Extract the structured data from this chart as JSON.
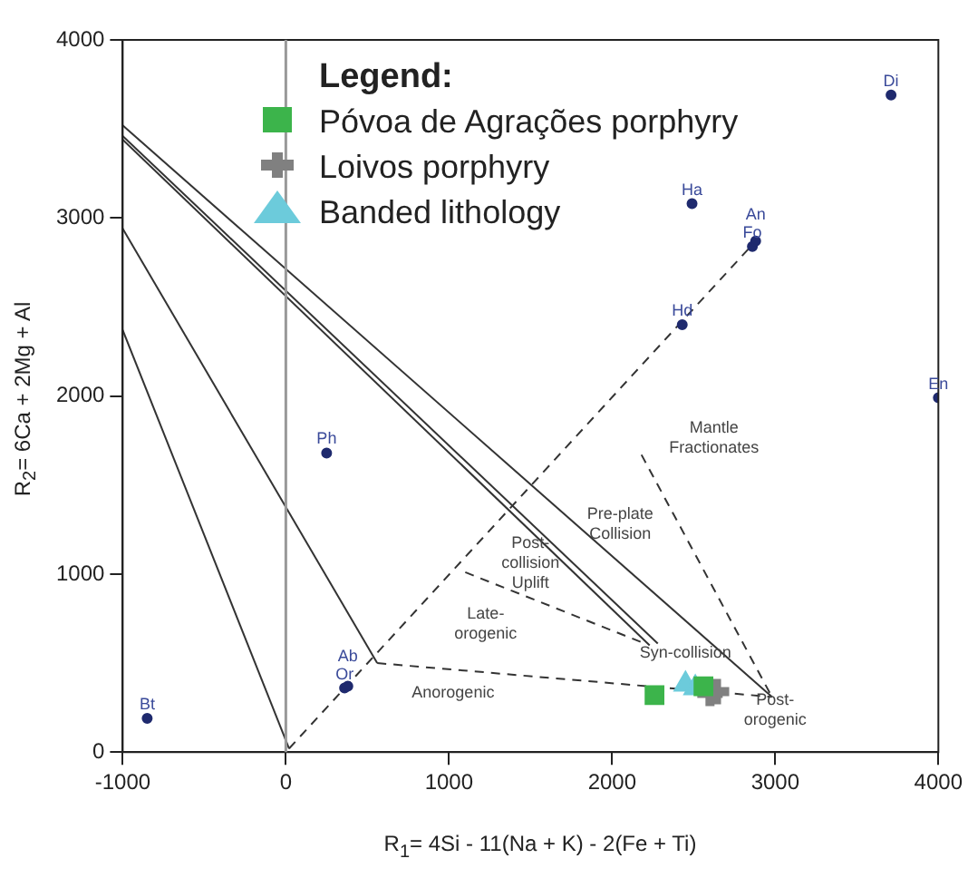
{
  "chart_data": {
    "type": "scatter",
    "xlabel": "R$_{1}$= 4Si - 11(Na + K) - 2(Fe + Ti)",
    "ylabel": "R$_{2}$= 6Ca + 2Mg + Al",
    "legend_title": "Legend:",
    "legend": "top",
    "grid": false,
    "xlim": [
      -1000,
      4000
    ],
    "xticks": [
      -1000,
      0,
      1000,
      2000,
      3000,
      4000
    ],
    "ylim": [
      0,
      4000
    ],
    "yticks": [
      0,
      1000,
      2000,
      3000,
      4000
    ],
    "ref_lines": [
      {
        "axis": "x",
        "value": 0,
        "color": "#999999"
      }
    ],
    "series": [
      {
        "name": "Póvoa de Agrações porphyry",
        "marker": "square",
        "color": "#3cb44b",
        "x": [
          2260,
          2560
        ],
        "values": [
          320,
          370
        ]
      },
      {
        "name": "Loivos porphyry",
        "marker": "cross",
        "color": "#808080",
        "x": [
          2600,
          2640
        ],
        "values": [
          330,
          340
        ]
      },
      {
        "name": "Banded lithology",
        "marker": "triangle",
        "color": "#6ccbdb",
        "x": [
          2450,
          2510
        ],
        "values": [
          380,
          360
        ]
      },
      {
        "marker": "circle",
        "color": "#1f2a6e",
        "x": [
          -850,
          250,
          360,
          380,
          2490,
          2860,
          2880,
          2430,
          3710,
          4000
        ],
        "values": [
          190,
          1680,
          360,
          370,
          3080,
          2840,
          2870,
          2400,
          3690,
          1990
        ]
      },
      {
        "type": "line",
        "marker": "none",
        "line_style": "solid",
        "color": "#333333",
        "x": [
          -1000,
          2980
        ],
        "values": [
          3520,
          310
        ]
      },
      {
        "type": "line",
        "marker": "none",
        "line_style": "solid",
        "color": "#333333",
        "x": [
          -1000,
          2280
        ],
        "values": [
          3460,
          610
        ]
      },
      {
        "type": "line",
        "marker": "none",
        "line_style": "solid",
        "color": "#333333",
        "x": [
          -1000,
          2230
        ],
        "values": [
          3440,
          600
        ]
      },
      {
        "type": "line",
        "marker": "none",
        "line_style": "solid",
        "color": "#333333",
        "x": [
          -1000,
          560
        ],
        "values": [
          2940,
          500
        ]
      },
      {
        "type": "line",
        "marker": "none",
        "line_style": "solid",
        "color": "#333333",
        "x": [
          -1000,
          20
        ],
        "values": [
          2370,
          20
        ]
      },
      {
        "type": "line",
        "marker": "none",
        "line_style": "dashed",
        "color": "#333333",
        "x": [
          20,
          2870
        ],
        "values": [
          20,
          2860
        ]
      },
      {
        "type": "line",
        "marker": "none",
        "line_style": "dashed",
        "color": "#333333",
        "x": [
          560,
          2980
        ],
        "values": [
          500,
          310
        ]
      },
      {
        "type": "line",
        "marker": "none",
        "line_style": "dashed",
        "color": "#333333",
        "x": [
          1100,
          2200
        ],
        "values": [
          1010,
          610
        ]
      },
      {
        "type": "line",
        "marker": "none",
        "line_style": "dashed",
        "color": "#333333",
        "x": [
          2180,
          2980
        ],
        "values": [
          1670,
          310
        ]
      }
    ],
    "annotations": [
      {
        "text": "Bt",
        "x": -850,
        "y": 190
      },
      {
        "text": "Ph",
        "x": 250,
        "y": 1680
      },
      {
        "text": "Or",
        "x": 360,
        "y": 360
      },
      {
        "text": "Ab",
        "x": 380,
        "y": 370
      },
      {
        "text": "Ha",
        "x": 2490,
        "y": 3080
      },
      {
        "text": "Fo",
        "x": 2860,
        "y": 2840
      },
      {
        "text": "An",
        "x": 2880,
        "y": 2870
      },
      {
        "text": "Hd",
        "x": 2430,
        "y": 2400
      },
      {
        "text": "Di",
        "x": 3710,
        "y": 3690
      },
      {
        "text": "En",
        "x": 4000,
        "y": 1990
      },
      "Mantle\nFractionates",
      "Pre-plate\nCollision",
      "Post-\ncollision\nUplift",
      "Late-\norogenic",
      "Anorogenic",
      "Syn-collision",
      "Post-\norogenic"
    ]
  }
}
